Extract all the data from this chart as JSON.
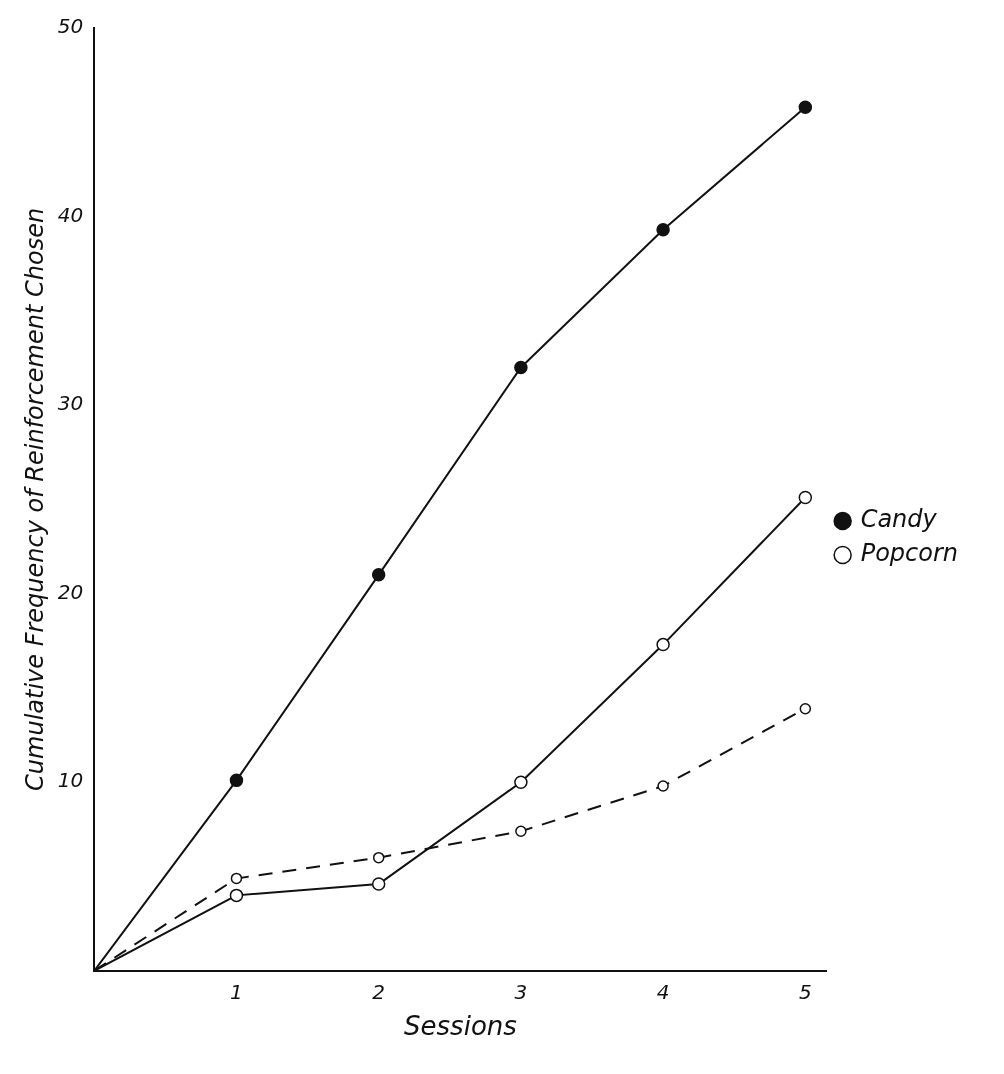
{
  "chart_data": {
    "type": "line",
    "xlabel": "Sessions",
    "ylabel": "Cumulative Frequency of Reinforcement Chosen",
    "x": [
      0,
      1,
      2,
      3,
      4,
      5
    ],
    "xlim": [
      0,
      5.15
    ],
    "xticks": [
      1,
      2,
      3,
      4,
      5
    ],
    "ylim": [
      0,
      50
    ],
    "yticks": [
      10,
      20,
      30,
      40,
      50
    ],
    "grid": false,
    "legend": "right",
    "marker": "circle",
    "series": [
      {
        "color": "#111111",
        "values": [
          0,
          4,
          4.6,
          10,
          17.3,
          25.1
        ],
        "line_style": "solid"
      },
      {
        "name": "Candy",
        "color": "#111111",
        "values": [
          0,
          10.1,
          21,
          32,
          39.3,
          45.8
        ],
        "line_style": "solid"
      },
      {
        "name": "Popcorn",
        "color": "#111111",
        "values": [
          0,
          4.9,
          6,
          7.4,
          9.8,
          13.9
        ],
        "line_style": "dashed"
      }
    ]
  }
}
